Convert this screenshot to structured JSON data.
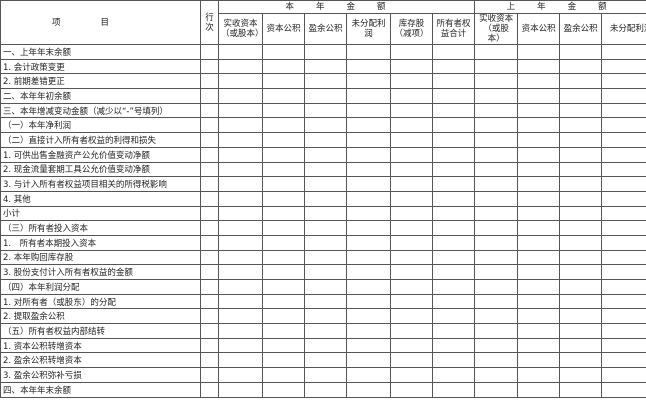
{
  "table": {
    "header": {
      "item": "项目",
      "line_no": "行次",
      "current_year": "本年金额",
      "prior_year": "上年金额",
      "current_columns": [
        "实收资本（或股本）",
        "资本公积",
        "盈余公积",
        "未分配利润",
        "库存股（减项）",
        "所有者权益合计"
      ],
      "prior_columns": [
        "实收资本（或股本）",
        "资本公积",
        "盈余公积",
        "未分配利润"
      ]
    },
    "rows": [
      "一、上年年末余额",
      "1. 会计政策变更",
      "2. 前期差错更正",
      "二、本年年初余额",
      "三、本年增减变动金额（减少以“-”号填列）",
      "（一）本年净利润",
      "（二）直接计入所有者权益的利得和损失",
      "1. 可供出售金融资产公允价值变动净额",
      "2. 现金流量套期工具公允价值变动净额",
      "3. 与计入所有者权益项目相关的所得税影响",
      "4. 其他",
      "小计",
      "（三）所有者投入资本",
      "1.　所有者本期投入资本",
      "2. 本年购回库存股",
      "3. 股份支付计入所有者权益的金额",
      "（四）本年利润分配",
      "1. 对所有者（或股东）的分配",
      "2. 提取盈余公积",
      "（五）所有者权益内部结转",
      "1. 资本公积转增资本",
      "2. 盈余公积转增资本",
      "3. 盈余公积弥补亏损",
      "四、本年年末余额"
    ]
  }
}
